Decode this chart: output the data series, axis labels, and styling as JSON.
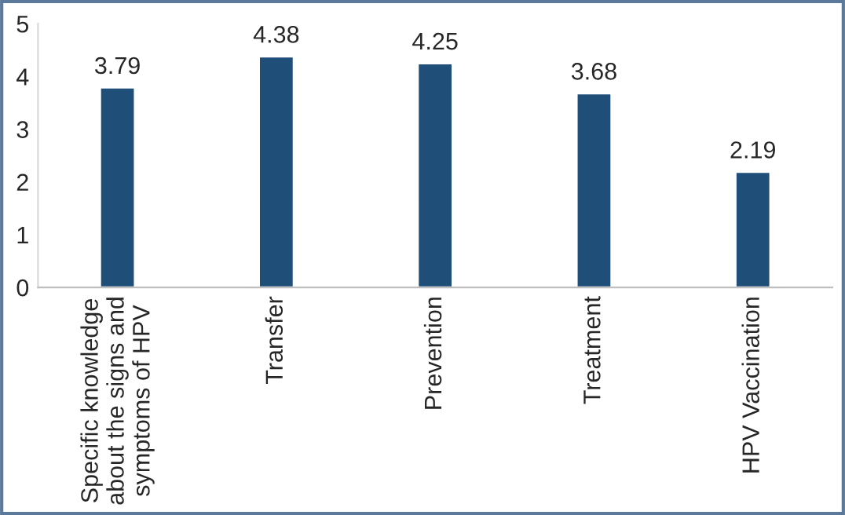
{
  "chart_data": {
    "type": "bar",
    "categories": [
      "Specific knowledge\nabout the signs and\nsymptoms of HPV",
      "Transfer",
      "Prevention",
      "Treatment",
      "HPV Vaccination"
    ],
    "values": [
      3.79,
      4.38,
      4.25,
      3.68,
      2.19
    ],
    "color": "#1f4e79",
    "ylim": [
      0,
      5
    ],
    "yticks": [
      0,
      1,
      2,
      3,
      4,
      5
    ],
    "data_labels": true,
    "grid": false,
    "legend": false
  }
}
